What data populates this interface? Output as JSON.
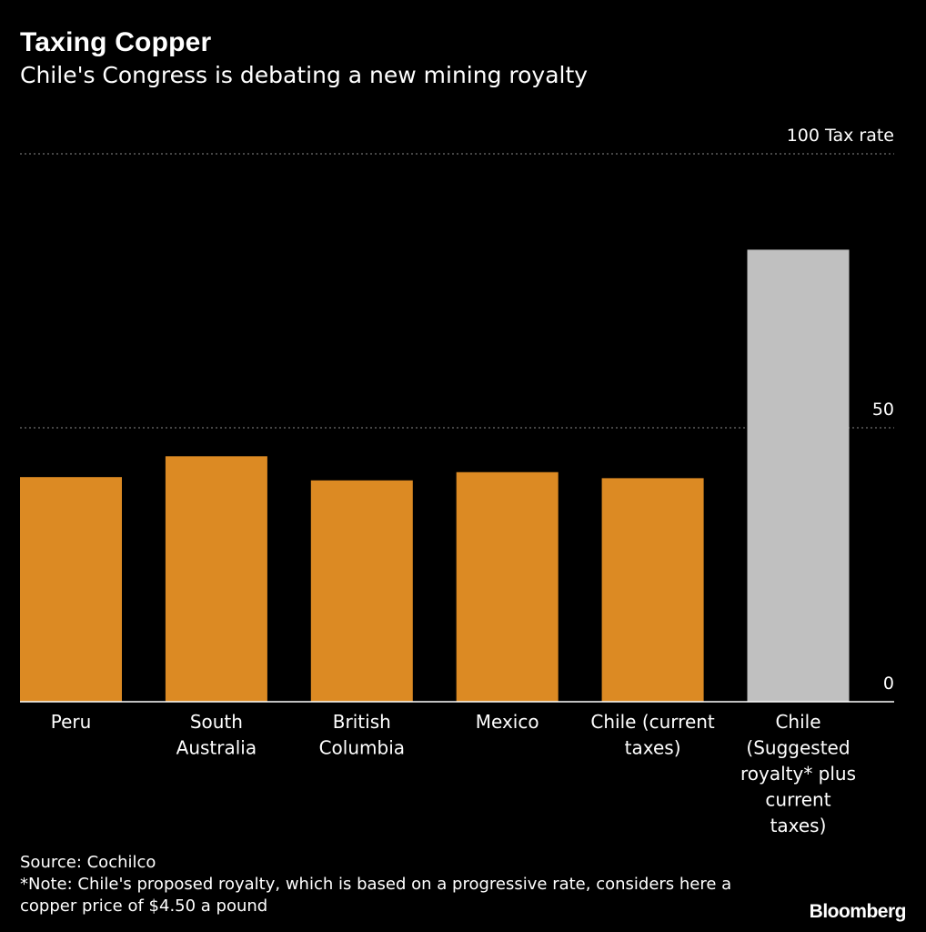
{
  "header": {
    "title": "Taxing Copper",
    "subtitle": "Chile's Congress is debating a new mining royalty"
  },
  "footer": {
    "source": "Source: Cochilco",
    "note": "*Note: Chile's proposed royalty, which is based on a progressive rate, considers here a copper price of $4.50 a pound",
    "brand": "Bloomberg"
  },
  "colors": {
    "background": "#000000",
    "bar_default": "#dc8a23",
    "bar_highlight": "#c0c0c0",
    "gridline": "#8a8a8a",
    "text": "#ffffff"
  },
  "chart_data": {
    "type": "bar",
    "categories": [
      [
        "Peru"
      ],
      [
        "South",
        "Australia"
      ],
      [
        "British",
        "Columbia"
      ],
      [
        "Mexico"
      ],
      [
        "Chile (current",
        "taxes)"
      ],
      [
        "Chile",
        "(Suggested",
        "royalty* plus",
        "current",
        "taxes)"
      ]
    ],
    "values": [
      41,
      44.8,
      40.4,
      41.9,
      40.8,
      82.5
    ],
    "highlight_index": 5,
    "ylim": [
      0,
      100
    ],
    "yticks": [
      0,
      50,
      100
    ],
    "ytick_labels": [
      "0",
      "50",
      "100 Tax rate"
    ],
    "grid": true
  }
}
